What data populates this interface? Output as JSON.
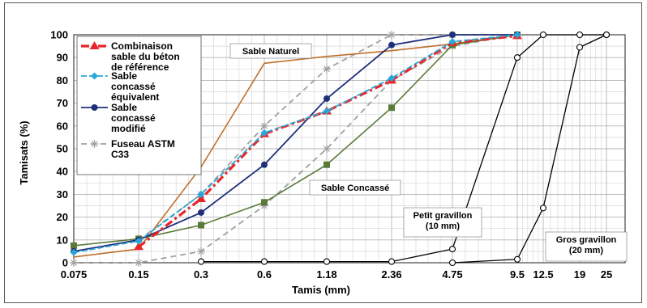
{
  "chart_data": {
    "type": "line",
    "xlabel": "Tamis (mm)",
    "ylabel": "Tamisats (%)",
    "x_scale": "categorical sieve sizes",
    "x_ticks": [
      "0.075",
      "0.15",
      "0.3",
      "0.6",
      "1.18",
      "2.36",
      "4.75",
      "9.5",
      "12.5",
      "19",
      "25"
    ],
    "ylim": [
      0,
      100
    ],
    "y_ticks": [
      0,
      10,
      20,
      30,
      40,
      50,
      60,
      70,
      80,
      90,
      100
    ],
    "grid": true,
    "legend_position": "top-left",
    "legend": [
      {
        "text": "Combinaison sable du béton de référence",
        "lines": [
          "Combinaison",
          "sable du béton",
          "de référence"
        ],
        "series": "ref"
      },
      {
        "text": "Sable concassé équivalent",
        "lines": [
          "Sable",
          "concassé",
          "équivalent"
        ],
        "series": "eq"
      },
      {
        "text": "Sable concassé modifié",
        "lines": [
          "Sable",
          "concassé",
          "modifié"
        ],
        "series": "mod"
      },
      {
        "text": "Fuseau ASTM C33",
        "lines": [
          "Fuseau ASTM",
          "C33"
        ],
        "series": "astm"
      }
    ],
    "series": [
      {
        "id": "ref",
        "style": "red-dashdot-triangle",
        "color": "#e8262a",
        "points": [
          [
            0.15,
            7
          ],
          [
            0.3,
            28
          ],
          [
            0.6,
            56.5
          ],
          [
            1.18,
            66.5
          ],
          [
            2.36,
            80
          ],
          [
            4.75,
            96.5
          ],
          [
            9.5,
            99.5
          ]
        ]
      },
      {
        "id": "eq",
        "style": "cyan-diamond",
        "color": "#2aa6d8",
        "points": [
          [
            0.075,
            4.5
          ],
          [
            0.15,
            9.5
          ],
          [
            0.3,
            30
          ],
          [
            0.6,
            57
          ],
          [
            1.18,
            66.5
          ],
          [
            2.36,
            81
          ],
          [
            4.75,
            97
          ],
          [
            9.5,
            100
          ]
        ]
      },
      {
        "id": "mod",
        "style": "navy-circle",
        "color": "#1f2f7a",
        "points": [
          [
            0.075,
            5
          ],
          [
            0.15,
            10
          ],
          [
            0.3,
            22
          ],
          [
            0.6,
            43
          ],
          [
            1.18,
            72
          ],
          [
            2.36,
            95.5
          ],
          [
            4.75,
            100
          ],
          [
            9.5,
            100
          ]
        ]
      },
      {
        "id": "astm_upper",
        "style": "gray-dashed-star",
        "color": "#a0a0a0",
        "points": [
          [
            0.15,
            10
          ],
          [
            0.3,
            30
          ],
          [
            0.6,
            60
          ],
          [
            1.18,
            85
          ],
          [
            2.36,
            100
          ],
          [
            4.75,
            100
          ],
          [
            9.5,
            100
          ]
        ]
      },
      {
        "id": "astm_lower",
        "style": "gray-dashed-star",
        "color": "#a0a0a0",
        "points": [
          [
            0.075,
            0
          ],
          [
            0.15,
            0
          ],
          [
            0.3,
            5
          ],
          [
            0.6,
            25
          ],
          [
            1.18,
            50
          ],
          [
            2.36,
            80
          ],
          [
            4.75,
            95
          ],
          [
            9.5,
            100
          ]
        ]
      },
      {
        "id": "naturel",
        "style": "brown-line",
        "color": "#c0702a",
        "points": [
          [
            0.075,
            2.5
          ],
          [
            0.15,
            6
          ],
          [
            0.3,
            42
          ],
          [
            0.6,
            87.5
          ],
          [
            1.18,
            90.5
          ],
          [
            2.36,
            93
          ],
          [
            4.75,
            96
          ],
          [
            9.5,
            100
          ]
        ]
      },
      {
        "id": "concasse",
        "style": "olive-square",
        "color": "#5a7a3a",
        "points": [
          [
            0.075,
            7.5
          ],
          [
            0.15,
            10.5
          ],
          [
            0.3,
            16.5
          ],
          [
            0.6,
            26.5
          ],
          [
            1.18,
            43
          ],
          [
            2.36,
            68
          ],
          [
            4.75,
            95.5
          ],
          [
            9.5,
            100
          ]
        ]
      },
      {
        "id": "petit",
        "style": "black-open-circle",
        "color": "#000000",
        "points": [
          [
            0.3,
            0.5
          ],
          [
            0.6,
            0.5
          ],
          [
            1.18,
            0.5
          ],
          [
            2.36,
            0.5
          ],
          [
            4.75,
            6
          ],
          [
            9.5,
            90
          ],
          [
            12.5,
            100
          ],
          [
            19,
            100
          ],
          [
            25,
            100
          ]
        ]
      },
      {
        "id": "gros",
        "style": "black-open-circle",
        "color": "#000000",
        "points": [
          [
            4.75,
            0
          ],
          [
            9.5,
            1.5
          ],
          [
            12.5,
            24
          ],
          [
            19,
            94.5
          ],
          [
            25,
            100
          ]
        ]
      }
    ],
    "annotations": [
      {
        "text": "Sable Naturel",
        "near": "upper middle"
      },
      {
        "text": "Sable Concassé",
        "near": "center"
      },
      {
        "text": "Petit gravillon (10 mm)",
        "lines": [
          "Petit gravillon",
          "(10 mm)"
        ],
        "near": "lower right of center"
      },
      {
        "text": "Gros gravillon (20 mm)",
        "lines": [
          "Gros gravillon",
          "(20 mm)"
        ],
        "near": "lower right"
      }
    ]
  }
}
